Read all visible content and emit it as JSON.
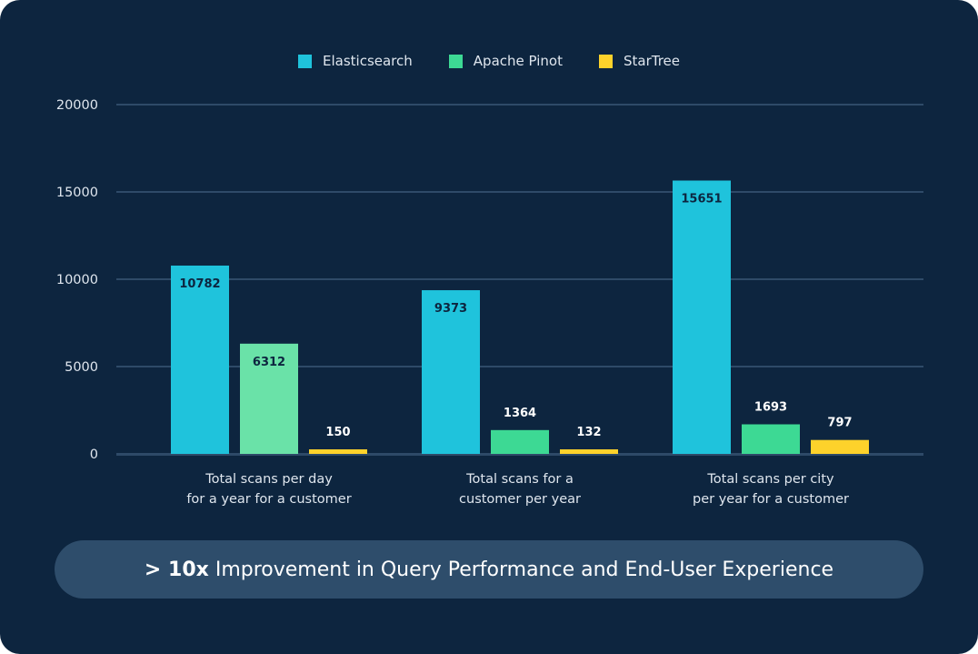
{
  "chart_data": {
    "type": "bar",
    "categories": [
      "Total scans per day\nfor a year for a customer",
      "Total scans for a\ncustomer per year",
      "Total scans per city\nper year for a customer"
    ],
    "series": [
      {
        "name": "Elasticsearch",
        "color": "#1fc3dc",
        "values": [
          10782,
          9373,
          15651
        ]
      },
      {
        "name": "Apache Pinot",
        "color": "#3dd994",
        "values": [
          6312,
          1364,
          1693
        ]
      },
      {
        "name": "StarTree",
        "color": "#fdd22b",
        "values": [
          150,
          132,
          797
        ]
      }
    ],
    "ylim": [
      0,
      20000
    ],
    "yticks": [
      "0",
      "5000",
      "10000",
      "15000",
      "20000"
    ],
    "grid": true,
    "legend": "top-center"
  },
  "banner": {
    "bold": "> 10x",
    "text": "Improvement in Query Performance and End-User Experience"
  }
}
